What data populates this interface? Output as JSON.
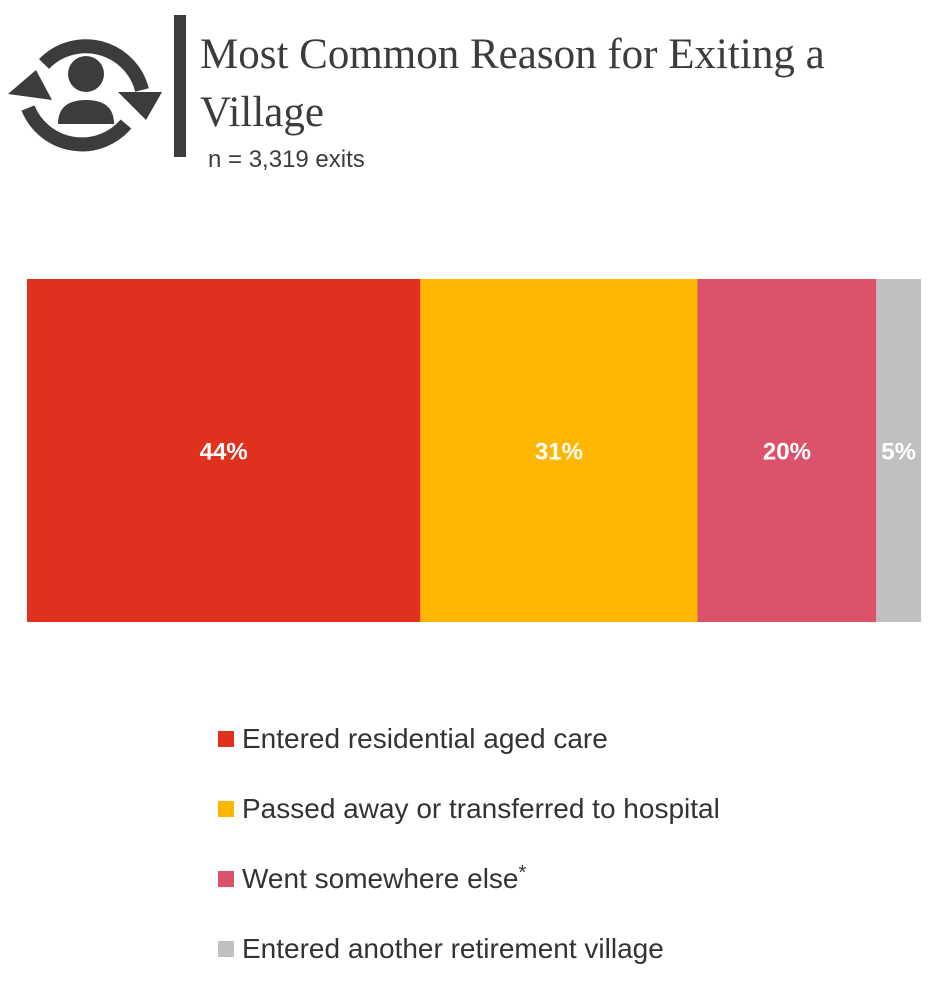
{
  "header": {
    "title": "Most Common Reason for Exiting a Village",
    "subtitle": "n = 3,319 exits",
    "icon": "person-cycle-icon"
  },
  "chart_data": {
    "type": "bar",
    "orientation": "horizontal-stacked-100",
    "title": "Most Common Reason for Exiting a Village",
    "subtitle": "n = 3,319 exits",
    "categories": [
      "Entered residential aged care",
      "Passed away or transferred to hospital",
      "Went somewhere else",
      "Entered another retirement village"
    ],
    "values": [
      44,
      31,
      20,
      5
    ],
    "labels": [
      "44%",
      "31%",
      "20%",
      "5%"
    ],
    "colors": [
      "#E0301E",
      "#FFB600",
      "#DB536A",
      "#C0C0C0"
    ],
    "footnote_marks": [
      "",
      "",
      "*",
      ""
    ],
    "legend_position": "bottom",
    "xlim": [
      0,
      100
    ],
    "grid": false
  }
}
